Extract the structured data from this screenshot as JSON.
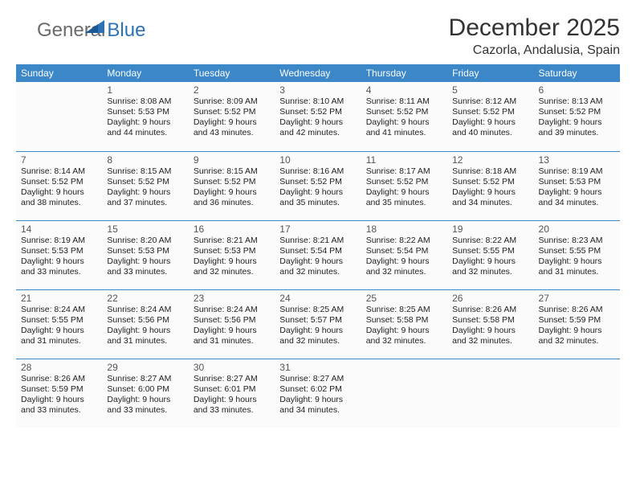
{
  "brand": {
    "part1": "General",
    "part2": "Blue"
  },
  "title": "December 2025",
  "subtitle": "Cazorla, Andalusia, Spain",
  "colors": {
    "header_bg": "#3b87c8",
    "header_text": "#ffffff",
    "border": "#3b87c8",
    "logo_gray": "#6b6b6b",
    "logo_blue": "#2d72b5"
  },
  "weekdays": [
    "Sunday",
    "Monday",
    "Tuesday",
    "Wednesday",
    "Thursday",
    "Friday",
    "Saturday"
  ],
  "weeks": [
    [
      null,
      {
        "n": "1",
        "sr": "8:08 AM",
        "ss": "5:53 PM",
        "dl": "9 hours and 44 minutes."
      },
      {
        "n": "2",
        "sr": "8:09 AM",
        "ss": "5:52 PM",
        "dl": "9 hours and 43 minutes."
      },
      {
        "n": "3",
        "sr": "8:10 AM",
        "ss": "5:52 PM",
        "dl": "9 hours and 42 minutes."
      },
      {
        "n": "4",
        "sr": "8:11 AM",
        "ss": "5:52 PM",
        "dl": "9 hours and 41 minutes."
      },
      {
        "n": "5",
        "sr": "8:12 AM",
        "ss": "5:52 PM",
        "dl": "9 hours and 40 minutes."
      },
      {
        "n": "6",
        "sr": "8:13 AM",
        "ss": "5:52 PM",
        "dl": "9 hours and 39 minutes."
      }
    ],
    [
      {
        "n": "7",
        "sr": "8:14 AM",
        "ss": "5:52 PM",
        "dl": "9 hours and 38 minutes."
      },
      {
        "n": "8",
        "sr": "8:15 AM",
        "ss": "5:52 PM",
        "dl": "9 hours and 37 minutes."
      },
      {
        "n": "9",
        "sr": "8:15 AM",
        "ss": "5:52 PM",
        "dl": "9 hours and 36 minutes."
      },
      {
        "n": "10",
        "sr": "8:16 AM",
        "ss": "5:52 PM",
        "dl": "9 hours and 35 minutes."
      },
      {
        "n": "11",
        "sr": "8:17 AM",
        "ss": "5:52 PM",
        "dl": "9 hours and 35 minutes."
      },
      {
        "n": "12",
        "sr": "8:18 AM",
        "ss": "5:52 PM",
        "dl": "9 hours and 34 minutes."
      },
      {
        "n": "13",
        "sr": "8:19 AM",
        "ss": "5:53 PM",
        "dl": "9 hours and 34 minutes."
      }
    ],
    [
      {
        "n": "14",
        "sr": "8:19 AM",
        "ss": "5:53 PM",
        "dl": "9 hours and 33 minutes."
      },
      {
        "n": "15",
        "sr": "8:20 AM",
        "ss": "5:53 PM",
        "dl": "9 hours and 33 minutes."
      },
      {
        "n": "16",
        "sr": "8:21 AM",
        "ss": "5:53 PM",
        "dl": "9 hours and 32 minutes."
      },
      {
        "n": "17",
        "sr": "8:21 AM",
        "ss": "5:54 PM",
        "dl": "9 hours and 32 minutes."
      },
      {
        "n": "18",
        "sr": "8:22 AM",
        "ss": "5:54 PM",
        "dl": "9 hours and 32 minutes."
      },
      {
        "n": "19",
        "sr": "8:22 AM",
        "ss": "5:55 PM",
        "dl": "9 hours and 32 minutes."
      },
      {
        "n": "20",
        "sr": "8:23 AM",
        "ss": "5:55 PM",
        "dl": "9 hours and 31 minutes."
      }
    ],
    [
      {
        "n": "21",
        "sr": "8:24 AM",
        "ss": "5:55 PM",
        "dl": "9 hours and 31 minutes."
      },
      {
        "n": "22",
        "sr": "8:24 AM",
        "ss": "5:56 PM",
        "dl": "9 hours and 31 minutes."
      },
      {
        "n": "23",
        "sr": "8:24 AM",
        "ss": "5:56 PM",
        "dl": "9 hours and 31 minutes."
      },
      {
        "n": "24",
        "sr": "8:25 AM",
        "ss": "5:57 PM",
        "dl": "9 hours and 32 minutes."
      },
      {
        "n": "25",
        "sr": "8:25 AM",
        "ss": "5:58 PM",
        "dl": "9 hours and 32 minutes."
      },
      {
        "n": "26",
        "sr": "8:26 AM",
        "ss": "5:58 PM",
        "dl": "9 hours and 32 minutes."
      },
      {
        "n": "27",
        "sr": "8:26 AM",
        "ss": "5:59 PM",
        "dl": "9 hours and 32 minutes."
      }
    ],
    [
      {
        "n": "28",
        "sr": "8:26 AM",
        "ss": "5:59 PM",
        "dl": "9 hours and 33 minutes."
      },
      {
        "n": "29",
        "sr": "8:27 AM",
        "ss": "6:00 PM",
        "dl": "9 hours and 33 minutes."
      },
      {
        "n": "30",
        "sr": "8:27 AM",
        "ss": "6:01 PM",
        "dl": "9 hours and 33 minutes."
      },
      {
        "n": "31",
        "sr": "8:27 AM",
        "ss": "6:02 PM",
        "dl": "9 hours and 34 minutes."
      },
      null,
      null,
      null
    ]
  ],
  "labels": {
    "sunrise": "Sunrise:",
    "sunset": "Sunset:",
    "daylight": "Daylight:"
  }
}
